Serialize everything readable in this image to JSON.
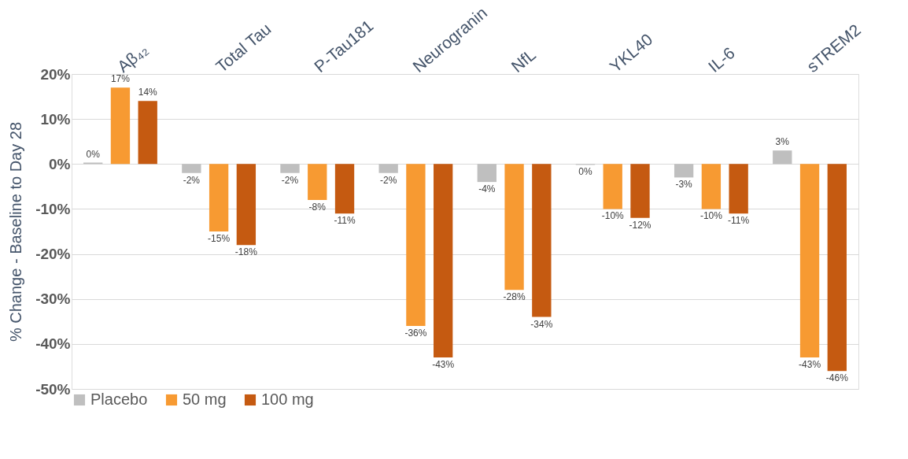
{
  "chart_data": {
    "type": "bar",
    "ylabel": "% Change - Baseline to Day 28",
    "categories": [
      "Aβ₄₂",
      "Total Tau",
      "P-Tau181",
      "Neurogranin",
      "NfL",
      "YKL40",
      "IL-6",
      "sTREM2"
    ],
    "series": [
      {
        "name": "Placebo",
        "color": "#bfbfbf",
        "values": [
          0.3,
          -2,
          -2,
          -2,
          -4,
          -0.2,
          -3,
          3
        ],
        "value_labels": [
          "0%",
          "-2%",
          "-2%",
          "-2%",
          "-4%",
          "0%",
          "-3%",
          "3%"
        ]
      },
      {
        "name": "50 mg",
        "color": "#f79a32",
        "values": [
          17,
          -15,
          -8,
          -36,
          -28,
          -10,
          -10,
          -43
        ],
        "value_labels": [
          "17%",
          "-15%",
          "-8%",
          "-36%",
          "-28%",
          "-10%",
          "-10%",
          "-43%"
        ]
      },
      {
        "name": "100 mg",
        "color": "#c55a11",
        "values": [
          14,
          -18,
          -11,
          -43,
          -34,
          -12,
          -11,
          -46
        ],
        "value_labels": [
          "14%",
          "-18%",
          "-11%",
          "-43%",
          "-34%",
          "-12%",
          "-11%",
          "-46%"
        ]
      }
    ],
    "ylim": [
      -50,
      20
    ],
    "yticks": [
      {
        "value": -50,
        "label": "-50%"
      },
      {
        "value": -40,
        "label": "-40%"
      },
      {
        "value": -30,
        "label": "-30%"
      },
      {
        "value": -20,
        "label": "-20%"
      },
      {
        "value": -10,
        "label": "-10%"
      },
      {
        "value": 0,
        "label": "0%"
      },
      {
        "value": 10,
        "label": "10%"
      },
      {
        "value": 20,
        "label": "20%"
      }
    ],
    "grid": "y",
    "legend": "bottom"
  }
}
